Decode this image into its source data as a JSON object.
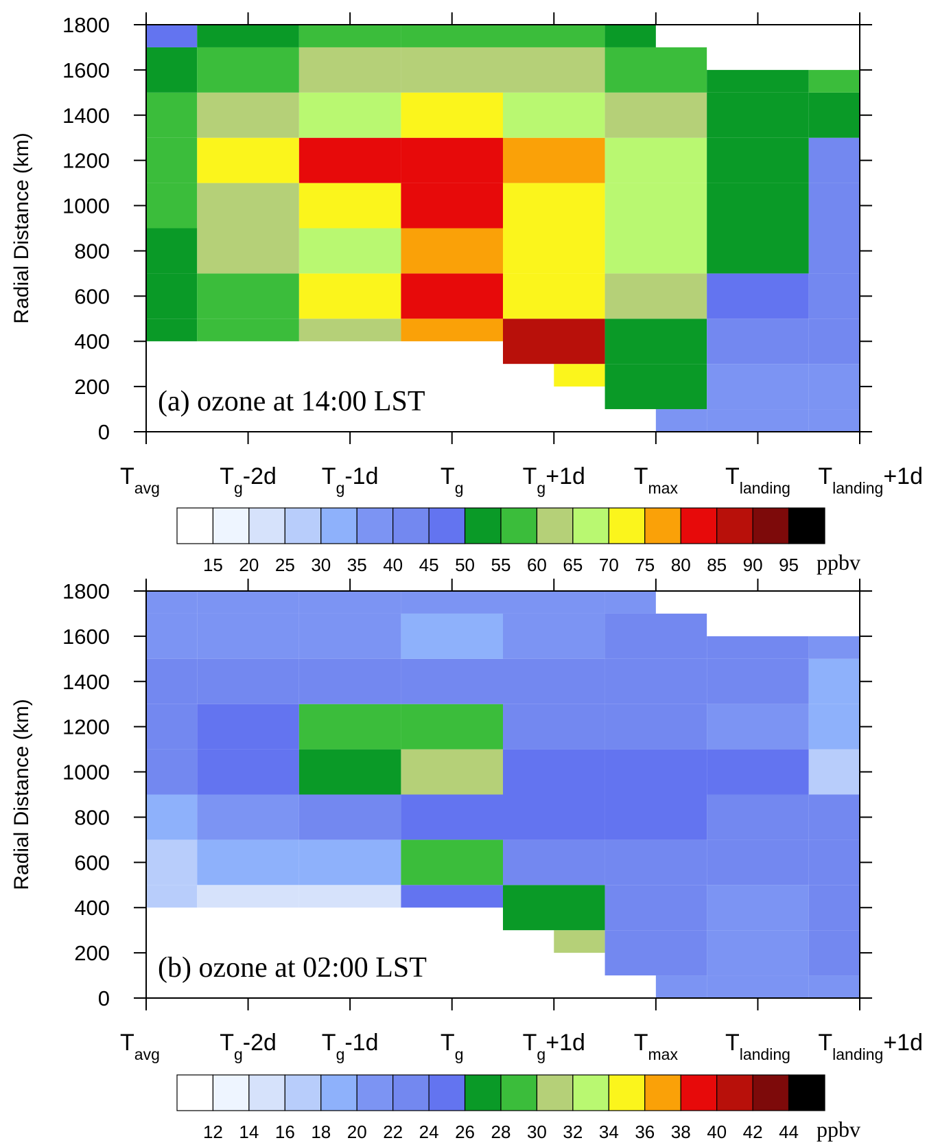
{
  "chart_data": [
    {
      "type": "heatmap",
      "title": "(a) ozone at 14:00 LST",
      "ylabel": "Radial Distance (km)",
      "xlabel": "",
      "units": "ppbv",
      "ylim": [
        0,
        1800
      ],
      "yticks": [
        "0",
        "200",
        "400",
        "600",
        "800",
        "1000",
        "1200",
        "1400",
        "1600",
        "1800"
      ],
      "x_categories": [
        {
          "base": "T",
          "sub": "avg",
          "tail": ""
        },
        {
          "base": "T",
          "sub": "g",
          "tail": "-2d"
        },
        {
          "base": "T",
          "sub": "g",
          "tail": "-1d"
        },
        {
          "base": "T",
          "sub": "g",
          "tail": ""
        },
        {
          "base": "T",
          "sub": "g",
          "tail": "+1d"
        },
        {
          "base": "T",
          "sub": "max",
          "tail": ""
        },
        {
          "base": "T",
          "sub": "landing",
          "tail": ""
        },
        {
          "base": "T",
          "sub": "landing",
          "tail": "+1d"
        }
      ],
      "rows_y": [
        0,
        200,
        400,
        600,
        800,
        1000,
        1200,
        1400,
        1600,
        1800
      ],
      "values": [
        [
          null,
          null,
          null,
          null,
          null,
          36,
          38,
          35
        ],
        [
          null,
          null,
          null,
          null,
          70,
          50,
          38,
          36
        ],
        [
          50,
          55,
          62,
          75,
          85,
          52,
          42,
          41
        ],
        [
          50,
          58,
          72,
          83,
          72,
          62,
          47,
          43
        ],
        [
          54,
          62,
          68,
          75,
          72,
          65,
          53,
          42
        ],
        [
          55,
          64,
          74,
          80,
          74,
          66,
          52,
          42
        ],
        [
          58,
          70,
          80,
          82,
          78,
          66,
          52,
          41
        ],
        [
          55,
          62,
          68,
          74,
          69,
          60,
          53,
          53
        ],
        [
          51,
          57,
          62,
          64,
          61,
          56,
          51,
          58
        ],
        [
          48,
          52,
          56,
          58,
          55,
          52,
          null,
          null
        ]
      ],
      "colorbar": {
        "levels": [
          "15",
          "20",
          "25",
          "30",
          "35",
          "40",
          "45",
          "50",
          "55",
          "60",
          "65",
          "70",
          "75",
          "80",
          "85",
          "90",
          "95"
        ],
        "colors": [
          "#ffffff",
          "#eef5ff",
          "#d6e2fb",
          "#b8cdfb",
          "#8eb1fb",
          "#7c94f3",
          "#7388f0",
          "#6374f0",
          "#0a9a27",
          "#3bbd3b",
          "#b5d078",
          "#b9f871",
          "#fbf51c",
          "#faa108",
          "#e70a0a",
          "#b8100a",
          "#7d0a0a",
          "#000000"
        ],
        "units": "ppbv"
      }
    },
    {
      "type": "heatmap",
      "title": "(b) ozone at 02:00 LST",
      "ylabel": "Radial Distance (km)",
      "xlabel": "",
      "units": "ppbv",
      "ylim": [
        0,
        1800
      ],
      "yticks": [
        "0",
        "200",
        "400",
        "600",
        "800",
        "1000",
        "1200",
        "1400",
        "1600",
        "1800"
      ],
      "x_categories": [
        {
          "base": "T",
          "sub": "avg",
          "tail": ""
        },
        {
          "base": "T",
          "sub": "g",
          "tail": "-2d"
        },
        {
          "base": "T",
          "sub": "g",
          "tail": "-1d"
        },
        {
          "base": "T",
          "sub": "g",
          "tail": ""
        },
        {
          "base": "T",
          "sub": "g",
          "tail": "+1d"
        },
        {
          "base": "T",
          "sub": "max",
          "tail": ""
        },
        {
          "base": "T",
          "sub": "landing",
          "tail": ""
        },
        {
          "base": "T",
          "sub": "landing",
          "tail": "+1d"
        }
      ],
      "rows_y": [
        0,
        200,
        400,
        600,
        800,
        1000,
        1200,
        1400,
        1600,
        1800
      ],
      "values": [
        [
          null,
          null,
          null,
          null,
          null,
          21,
          21,
          21
        ],
        [
          null,
          null,
          null,
          null,
          30,
          22,
          21,
          22
        ],
        [
          16,
          15,
          14,
          24,
          27,
          22,
          21,
          22
        ],
        [
          17,
          18,
          18,
          29,
          23,
          22,
          22,
          22
        ],
        [
          19,
          21,
          22,
          24,
          24,
          24,
          23,
          22
        ],
        [
          22,
          24,
          27,
          30,
          24,
          24,
          24,
          17
        ],
        [
          22,
          25,
          28,
          28,
          22,
          22,
          21,
          18
        ],
        [
          22,
          23,
          23,
          23,
          22,
          22,
          22,
          18
        ],
        [
          21,
          21,
          21,
          19,
          21,
          22,
          22,
          20
        ],
        [
          20,
          20,
          21,
          21,
          21,
          21,
          null,
          null
        ]
      ],
      "colorbar": {
        "levels": [
          "12",
          "14",
          "16",
          "18",
          "20",
          "22",
          "24",
          "26",
          "28",
          "30",
          "32",
          "34",
          "36",
          "38",
          "40",
          "42",
          "44"
        ],
        "colors": [
          "#ffffff",
          "#eef5ff",
          "#d6e2fb",
          "#b8cdfb",
          "#8eb1fb",
          "#7c94f3",
          "#7388f0",
          "#6374f0",
          "#0a9a27",
          "#3bbd3b",
          "#b5d078",
          "#b9f871",
          "#fbf51c",
          "#faa108",
          "#e70a0a",
          "#b8100a",
          "#7d0a0a",
          "#000000"
        ],
        "units": "ppbv"
      }
    }
  ]
}
